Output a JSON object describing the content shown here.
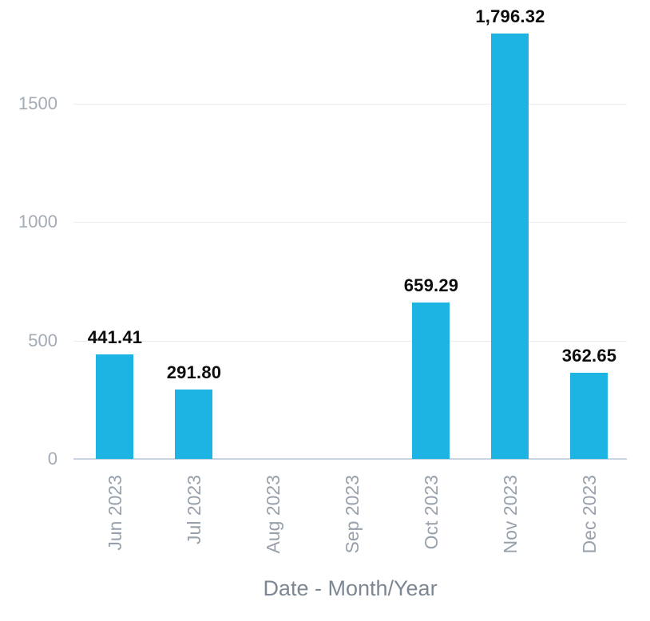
{
  "chart_data": {
    "type": "bar",
    "categories": [
      "Jun 2023",
      "Jul 2023",
      "Aug 2023",
      "Sep 2023",
      "Oct 2023",
      "Nov 2023",
      "Dec 2023"
    ],
    "values": [
      441.41,
      291.8,
      0,
      0,
      659.29,
      1796.32,
      362.65
    ],
    "value_labels": [
      "441.41",
      "291.80",
      "",
      "",
      "659.29",
      "1,796.32",
      "362.65"
    ],
    "title": "",
    "xlabel": "Date - Month/Year",
    "ylabel": "",
    "yticks": [
      0,
      500,
      1000,
      1500
    ],
    "ytick_labels": [
      "0",
      "500",
      "1000",
      "1500"
    ],
    "ylim": [
      0,
      1940
    ],
    "grid": true,
    "legend": false,
    "bar_color": "#1db4e4",
    "grid_color": "#ececec",
    "baseline_color": "#c9d6e2",
    "ytick_text_color": "#a3abb4",
    "xtick_text_color": "#98a1ab",
    "value_label_color": "#0d0d0d",
    "axis_title_color": "#7d8793"
  }
}
